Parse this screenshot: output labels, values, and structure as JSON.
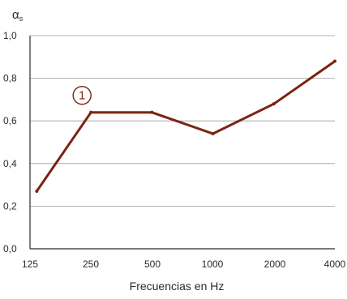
{
  "chart_data": {
    "type": "line",
    "title": "",
    "xlabel": "Frecuencias en Hz",
    "ylabel_main": "α",
    "ylabel_sub": "s",
    "x_scale": "log",
    "x_ticks": [
      "125",
      "250",
      "500",
      "1000",
      "2000",
      "4000"
    ],
    "y_ticks": [
      "0,0",
      "0,2",
      "0,4",
      "0,6",
      "0,8",
      "1,0"
    ],
    "ylim": [
      0,
      1.0
    ],
    "grid": "horizontal",
    "series": [
      {
        "color": "#7a2412",
        "x": [
          135,
          250,
          500,
          1000,
          2000,
          4000
        ],
        "y": [
          0.27,
          0.64,
          0.64,
          0.54,
          0.68,
          0.88
        ]
      }
    ],
    "annotations": [
      {
        "text": "1",
        "x": 250,
        "y": 0.64
      }
    ]
  }
}
